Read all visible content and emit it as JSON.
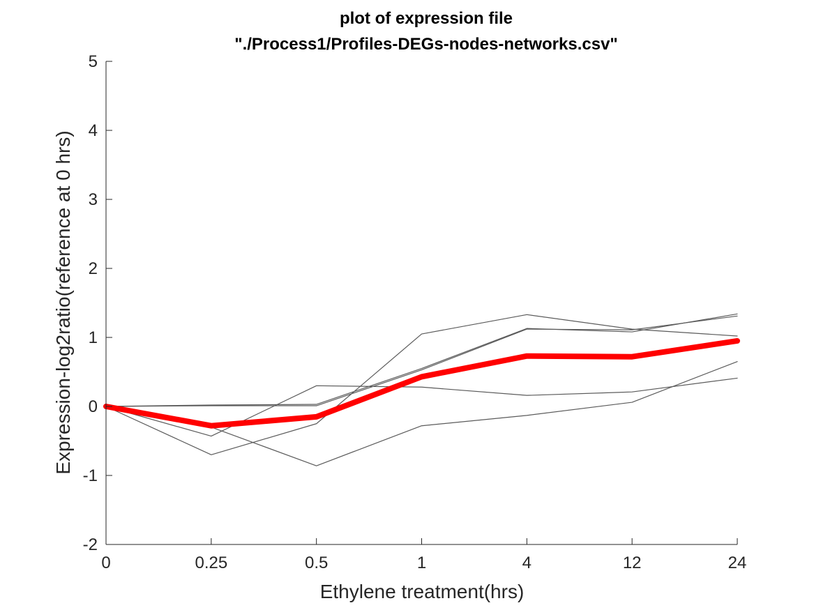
{
  "chart_data": {
    "type": "line",
    "title": "plot of expression file",
    "subtitle": "\"./Process1/Profiles-DEGs-nodes-networks.csv\"",
    "xlabel": "Ethylene treatment(hrs)",
    "ylabel": "Expression-log2ratio(reference at 0 hrs)",
    "categories": [
      "0",
      "0.25",
      "0.5",
      "1",
      "4",
      "12",
      "24"
    ],
    "ylim": [
      -2,
      5
    ],
    "yticks": [
      -2,
      -1,
      0,
      1,
      2,
      3,
      4,
      5
    ],
    "grid": false,
    "background_series_color": "#5a5a5a",
    "mean_series_color": "#ff0000",
    "series": [
      {
        "values": [
          0,
          0.02,
          0.03,
          0.55,
          1.13,
          1.08,
          1.34
        ],
        "emphasis": false
      },
      {
        "values": [
          0,
          0.01,
          0.01,
          0.53,
          1.12,
          1.11,
          1.31
        ],
        "emphasis": false
      },
      {
        "values": [
          0,
          -0.7,
          -0.25,
          1.05,
          1.33,
          1.12,
          1.02
        ],
        "emphasis": false
      },
      {
        "values": [
          0,
          -0.43,
          0.3,
          0.28,
          0.16,
          0.21,
          0.41
        ],
        "emphasis": false
      },
      {
        "values": [
          0,
          -0.3,
          -0.86,
          -0.28,
          -0.13,
          0.06,
          0.65
        ],
        "emphasis": false
      },
      {
        "values": [
          0,
          -0.28,
          -0.15,
          0.43,
          0.73,
          0.72,
          0.95
        ],
        "emphasis": true
      }
    ]
  }
}
